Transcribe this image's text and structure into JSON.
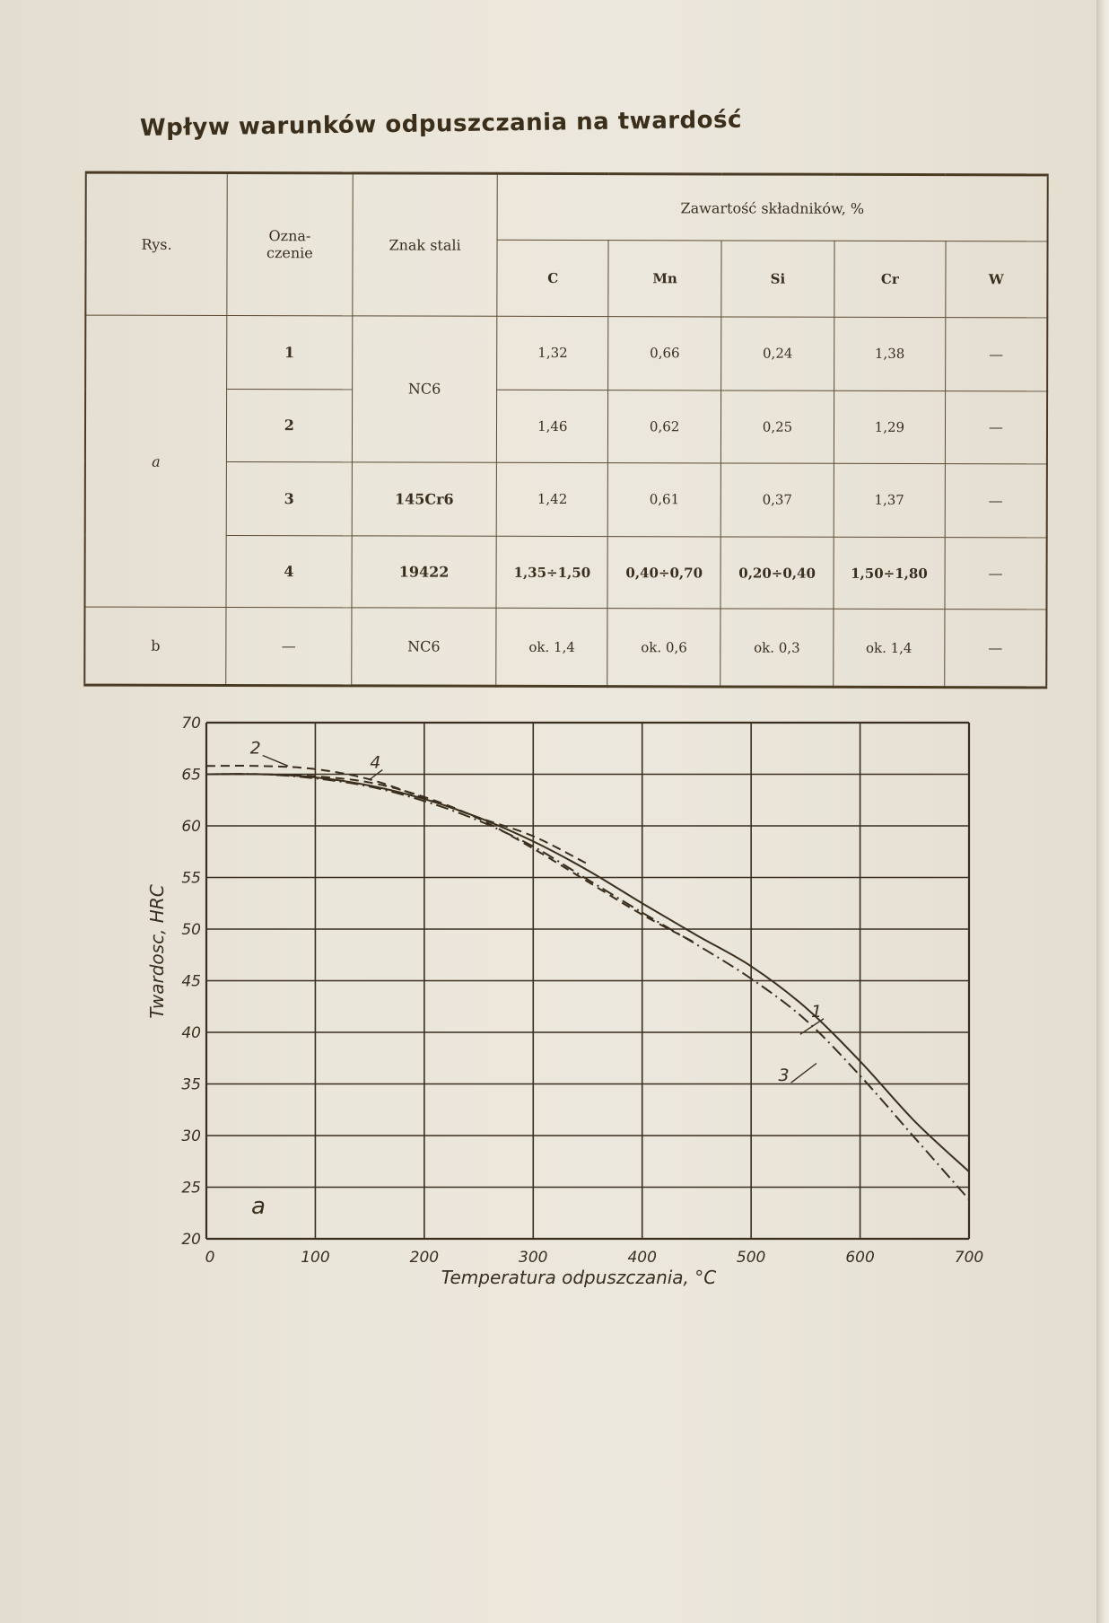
{
  "title": "Wpływ warunków odpuszczania na twardość",
  "table": {
    "headers": {
      "rys": "Rys.",
      "oznaczenie": "Ozna-\nczenie",
      "znak": "Znak stali",
      "zawartosc": "Zawartość składników, %",
      "elements": [
        "C",
        "Mn",
        "Si",
        "Cr",
        "W"
      ]
    },
    "rys_a": "a",
    "rys_b": "b",
    "nc6_a": "NC6",
    "rows": [
      {
        "ozn": "1",
        "c": "1,32",
        "mn": "0,66",
        "si": "0,24",
        "cr": "1,38",
        "w": "—"
      },
      {
        "ozn": "2",
        "c": "1,46",
        "mn": "0,62",
        "si": "0,25",
        "cr": "1,29",
        "w": "—"
      },
      {
        "ozn": "3",
        "znak": "145Cr6",
        "c": "1,42",
        "mn": "0,61",
        "si": "0,37",
        "cr": "1,37",
        "w": "—"
      },
      {
        "ozn": "4",
        "znak": "19422",
        "c": "1,35÷1,50",
        "mn": "0,40÷0,70",
        "si": "0,20÷0,40",
        "cr": "1,50÷1,80",
        "w": "—"
      },
      {
        "ozn": "—",
        "znak": "NC6",
        "c": "ok. 1,4",
        "mn": "ok. 0,6",
        "si": "ok. 0,3",
        "cr": "ok. 1,4",
        "w": "—"
      }
    ]
  },
  "chart_data": {
    "type": "line",
    "panel_label": "a",
    "xlabel": "Temperatura odpuszczania, °C",
    "ylabel": "Twardosc, HRC",
    "xlim": [
      0,
      700
    ],
    "ylim": [
      20,
      70
    ],
    "xticks": [
      "0",
      "100",
      "200",
      "300",
      "400",
      "500",
      "600",
      "700"
    ],
    "yticks": [
      "20",
      "25",
      "30",
      "35",
      "40",
      "45",
      "50",
      "55",
      "60",
      "65",
      "70"
    ],
    "grid": true,
    "series": [
      {
        "name": "1",
        "style": "solid",
        "x": [
          0,
          50,
          100,
          150,
          200,
          250,
          300,
          350,
          400,
          450,
          500,
          550,
          600,
          650,
          700
        ],
        "y": [
          65,
          65,
          64.7,
          63.9,
          62.6,
          60.8,
          58.5,
          55.7,
          52.5,
          49.4,
          46.4,
          42.4,
          37.2,
          31.4,
          26.5
        ]
      },
      {
        "name": "2",
        "style": "dashed",
        "x": [
          0,
          50,
          100,
          150,
          200,
          250,
          300,
          350
        ],
        "y": [
          65.8,
          65.8,
          65.5,
          64.5,
          62.7,
          60.8,
          59.0,
          56.3
        ]
      },
      {
        "name": "3",
        "style": "dashdot",
        "x": [
          0,
          50,
          100,
          150,
          200,
          250,
          300,
          350,
          400,
          450,
          500,
          550,
          600,
          650,
          700
        ],
        "y": [
          65,
          65,
          64.6,
          63.8,
          62.4,
          60.5,
          58.0,
          54.8,
          51.6,
          48.5,
          45.2,
          41.2,
          35.8,
          29.8,
          23.8
        ]
      },
      {
        "name": "4",
        "style": "dashed",
        "x": [
          0,
          50,
          100,
          150,
          200,
          250,
          300,
          350,
          400,
          450
        ],
        "y": [
          65,
          65,
          64.8,
          64.2,
          62.8,
          60.7,
          57.8,
          54.6,
          51.4,
          48.6
        ]
      }
    ]
  }
}
